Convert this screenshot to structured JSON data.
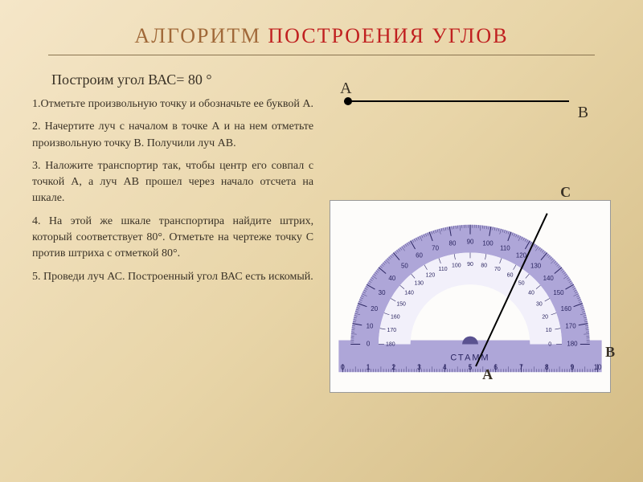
{
  "title": {
    "part1": "АЛГОРИТМ ",
    "part2": "ПОСТРОЕНИЯ УГЛОВ"
  },
  "intro": "Построим угол ВАС= 80 °",
  "steps": {
    "s1": "1.Отметьте произвольную точку и обозначьте ее буквой А.",
    "s2": "2. Начертите луч с началом в точке А и на нем отметьте произвольную точку В. Получили луч АВ.",
    "s3": "3. Наложите транспортир так, чтобы центр его совпал с точкой А, а луч АВ прошел через начало отсчета на шкале.",
    "s4": "4. На этой же шкале транспортира найдите штрих, который соответствует 80°. Отметьте на чертеже точку С против штриха с отметкой 80°.",
    "s5": "5. Проведи луч АС. Построенный угол ВАС есть искомый."
  },
  "labels": {
    "A": "А",
    "B": "В",
    "C": "С"
  },
  "protractor": {
    "brand": "СТАММ",
    "body_color": "#aea6d8",
    "scale_color": "#f2f0fa",
    "background": "#fdfcfa",
    "outer_ticks": [
      0,
      10,
      20,
      30,
      40,
      50,
      60,
      70,
      80,
      90,
      100,
      110,
      120,
      130,
      140,
      150,
      160,
      170,
      180
    ],
    "ruler_major": [
      0,
      1,
      2,
      3,
      4,
      5,
      6,
      7,
      8,
      9,
      10
    ],
    "line_angle_deg": 80
  },
  "colors": {
    "bg_start": "#f5e6c8",
    "bg_end": "#d4bc85",
    "title1": "#a06838",
    "title2": "#c02020",
    "text": "#3a3226"
  },
  "typography": {
    "title_fontsize": 26,
    "intro_fontsize": 18,
    "body_fontsize": 14,
    "label_fontsize": 20
  }
}
